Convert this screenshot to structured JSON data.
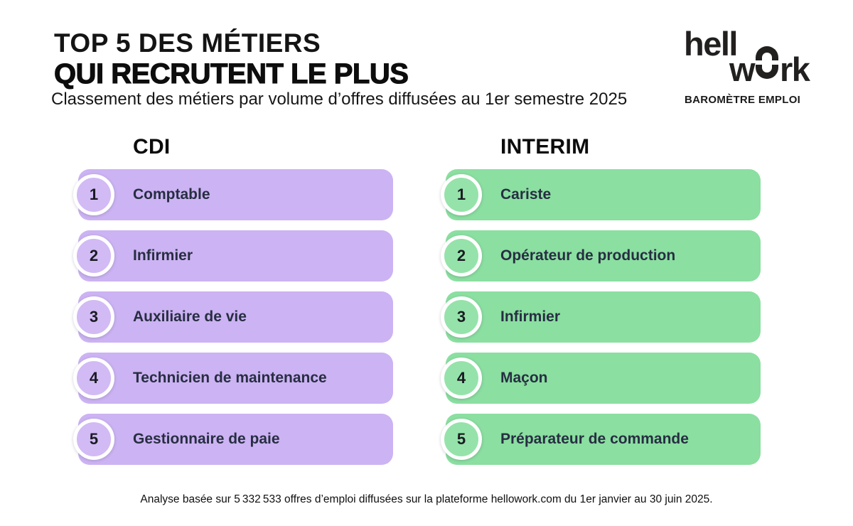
{
  "header": {
    "title_line1": "TOP 5 DES MÉTIERS",
    "title_line2": "QUI RECRUTENT LE PLUS",
    "subtitle": "Classement des métiers par volume d’offres diffusées au 1er semestre 2025"
  },
  "logo": {
    "part1": "hell",
    "part2": "w",
    "part3": "rk",
    "tagline": "BAROMÈTRE EMPLOI"
  },
  "chart_data": {
    "type": "table",
    "title": "TOP 5 DES MÉTIERS QUI RECRUTENT LE PLUS",
    "subtitle": "Classement des métiers par volume d’offres diffusées au 1er semestre 2025",
    "columns": [
      {
        "id": "cdi",
        "title": "CDI",
        "items": [
          {
            "rank": "1",
            "label": "Comptable"
          },
          {
            "rank": "2",
            "label": "Infirmier"
          },
          {
            "rank": "3",
            "label": "Auxiliaire de vie"
          },
          {
            "rank": "4",
            "label": "Technicien de maintenance"
          },
          {
            "rank": "5",
            "label": "Gestionnaire de paie"
          }
        ]
      },
      {
        "id": "interim",
        "title": "INTERIM",
        "items": [
          {
            "rank": "1",
            "label": "Cariste"
          },
          {
            "rank": "2",
            "label": "Opérateur de production"
          },
          {
            "rank": "3",
            "label": "Infirmier"
          },
          {
            "rank": "4",
            "label": "Maçon"
          },
          {
            "rank": "5",
            "label": "Préparateur de commande"
          }
        ]
      }
    ]
  },
  "footer": {
    "note": "Analyse basée sur 5 332 533 offres d’emploi diffusées sur la plateforme hellowork.com du 1er janvier au 30 juin 2025."
  },
  "colors": {
    "cdi_bar": "#ccb3f3",
    "cdi_circle": "#d2baf5",
    "interim_bar": "#8bdfa1",
    "interim_circle": "#95e3aa",
    "label_text": "#272e42",
    "rank_text": "#191b22",
    "ink": "#221f1f"
  }
}
